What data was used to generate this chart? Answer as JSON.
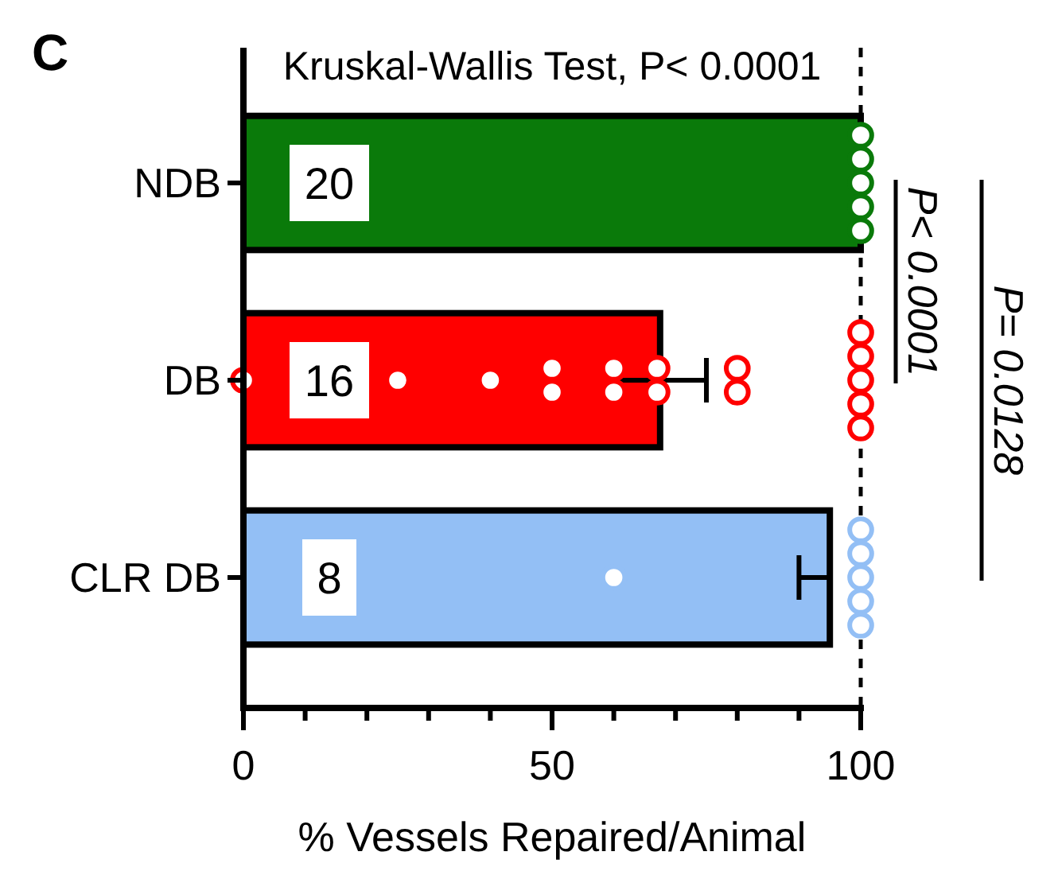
{
  "chart_data": {
    "type": "bar",
    "orientation": "horizontal",
    "subtitle": "Kruskal-Wallis Test, P< 0.0001",
    "xlabel": "% Vessels Repaired/Animal",
    "categories": [
      "NDB",
      "DB",
      "CLR DB"
    ],
    "series": [
      {
        "type": "bar",
        "colors": [
          "#0a7a0a",
          "#ff0000",
          "#93bff5"
        ],
        "values": [
          100,
          67.5,
          95
        ],
        "errors": [
          null,
          [
            60,
            75
          ],
          [
            90,
            95
          ]
        ]
      },
      {
        "type": "scatter",
        "color": "#0a7a0a",
        "x": [
          "NDB",
          "NDB",
          "NDB",
          "NDB",
          "NDB"
        ],
        "values": [
          100,
          100,
          100,
          100,
          100
        ]
      },
      {
        "type": "scatter",
        "color": "#ff0000",
        "x": [
          "DB",
          "DB",
          "DB",
          "DB",
          "DB",
          "DB",
          "DB",
          "DB",
          "DB",
          "DB",
          "DB",
          "DB",
          "DB",
          "DB",
          "DB",
          "DB"
        ],
        "values": [
          0,
          25,
          40,
          50,
          50,
          60,
          60,
          67,
          67,
          80,
          80,
          100,
          100,
          100,
          100,
          100
        ]
      },
      {
        "type": "scatter",
        "color": "#93bff5",
        "x": [
          "CLR DB",
          "CLR DB",
          "CLR DB",
          "CLR DB",
          "CLR DB",
          "CLR DB"
        ],
        "values": [
          60,
          100,
          100,
          100,
          100,
          100
        ]
      }
    ],
    "xlim": [
      0,
      100
    ],
    "xticks": [
      0,
      {
        "value": 10,
        "label": null
      },
      {
        "value": 20,
        "label": null
      },
      {
        "value": 30,
        "label": null
      },
      {
        "value": 40,
        "label": null
      },
      50,
      {
        "value": 60,
        "label": null
      },
      {
        "value": 70,
        "label": null
      },
      {
        "value": 80,
        "label": null
      },
      {
        "value": 90,
        "label": null
      },
      100
    ],
    "ref_lines": [
      {
        "axis": "x",
        "value": 100,
        "line_style": "dashed",
        "color": "#000000"
      }
    ],
    "marker": "circle",
    "grid": false,
    "annotations": [
      "C",
      "20",
      "16",
      "8",
      "P< 0.0001",
      "P= 0.0128"
    ]
  }
}
